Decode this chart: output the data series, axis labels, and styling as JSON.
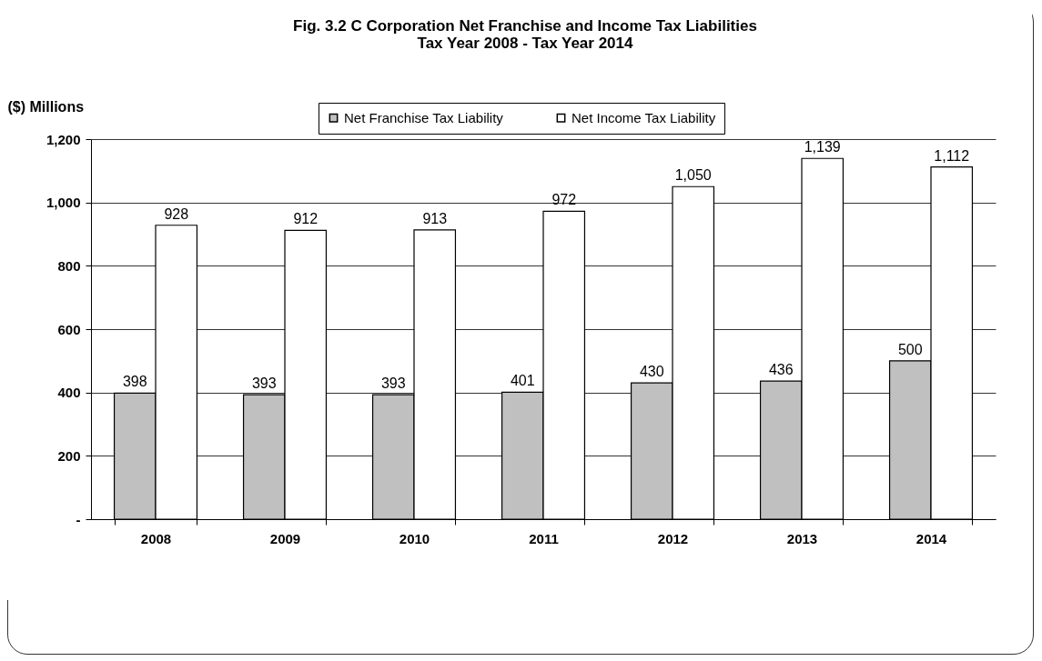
{
  "chart_data": {
    "type": "bar",
    "title": "Fig. 3.2  C Corporation Net Franchise and Income Tax Liabilities",
    "subtitle": "Tax Year 2008 - Tax Year 2014",
    "ylabel": "($) Millions",
    "categories": [
      "2008",
      "2009",
      "2010",
      "2011",
      "2012",
      "2013",
      "2014"
    ],
    "series": [
      {
        "name": "Net Franchise Tax Liability",
        "color": "#c0c0c0",
        "values": [
          398,
          393,
          393,
          401,
          430,
          436,
          500
        ],
        "value_labels": [
          "398",
          "393",
          "393",
          "401",
          "430",
          "436",
          "500"
        ]
      },
      {
        "name": "Net Income Tax Liability",
        "color": "#ffffff",
        "values": [
          928,
          912,
          913,
          972,
          1050,
          1139,
          1112
        ],
        "value_labels": [
          "928",
          "912",
          "913",
          "972",
          "1,050",
          "1,139",
          "1,112"
        ]
      }
    ],
    "ylim": [
      0,
      1200
    ],
    "yticks": [
      {
        "value": 0,
        "label": "-"
      },
      200,
      400,
      600,
      800,
      {
        "value": 1000,
        "label": "1,000"
      },
      {
        "value": 1200,
        "label": "1,200"
      }
    ],
    "grid": "y",
    "legend": "top right"
  }
}
